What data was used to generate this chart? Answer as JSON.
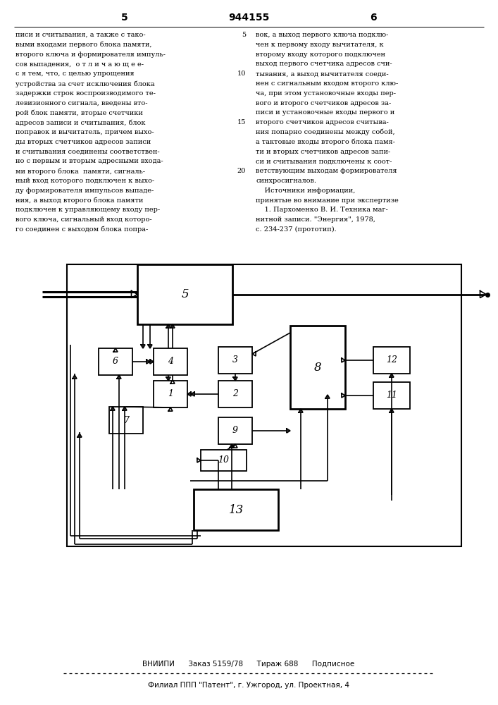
{
  "page_number_left": "5",
  "patent_number": "944155",
  "page_number_right": "6",
  "bg_color": "#ffffff",
  "left_col_lines": [
    "писи и считывания, а также с тако-",
    "выми входами первого блока памяти,",
    "второго ключа и формирователя импуль-",
    "сов выпадения,  о т л и ч а ю щ е е-",
    "с я тем, что, с целью упрощения",
    "устройства за счет исключения блока",
    "задержки строк воспроизводимого те-",
    "левизионного сигнала, введены вто-",
    "рой блок памяти, вторые счетчики",
    "адресов записи и считывания, блок",
    "поправок и вычитатель, причем выхо-",
    "ды вторых счетчиков адресов записи",
    "и считывания соединены соответствен-",
    "но с первым и вторым адресными входа-",
    "ми второго блока  памяти, сигналь-",
    "ный вход которого подключен к выхо-",
    "ду формирователя импульсов выпаде-",
    "ния, а выход второго блока памяти",
    "подключен к управляющему входу пер-",
    "вого ключа, сигнальный вход которо-",
    "го соединен с выходом блока попра-"
  ],
  "right_col_lines": [
    "вок, а выход первого ключа подклю-",
    "чен к первому входу вычитателя, к",
    "второму входу которого подключен",
    "выход первого счетчика адресов счи-",
    "тывания, а выход вычитателя соеди-",
    "нен с сигнальным входом второго клю-",
    "ча, при этом установочные входы пер-",
    "вого и второго счетчиков адресов за-",
    "писи и установочные входы первого и",
    "второго счетчиков адресов считыва-",
    "ния попарно соединены между собой,",
    "а тактовые входы второго блока памя-",
    "ти и вторых счетчиков адресов запи-",
    "си и считывания подключены к соот-",
    "ветствующим выходам формирователя",
    "синхросигналов.",
    "    Источники информации,",
    "принятые во внимание при экспертизе",
    "    1. Пархоменко В. И. Техника маг-",
    "нитной записи. \"Энергия\", 1978,",
    "с. 234-237 (прототип)."
  ],
  "line_num_rows": [
    0,
    4,
    9,
    14
  ],
  "line_nums": [
    "5",
    "10",
    "15",
    "20"
  ],
  "bottom_text1": "ВНИИПИ      Заказ 5159/78      Тираж 688      Подписное",
  "bottom_text2": "Филиал ППП \"Патент\", г. Ужгород, ул. Проектная, 4"
}
